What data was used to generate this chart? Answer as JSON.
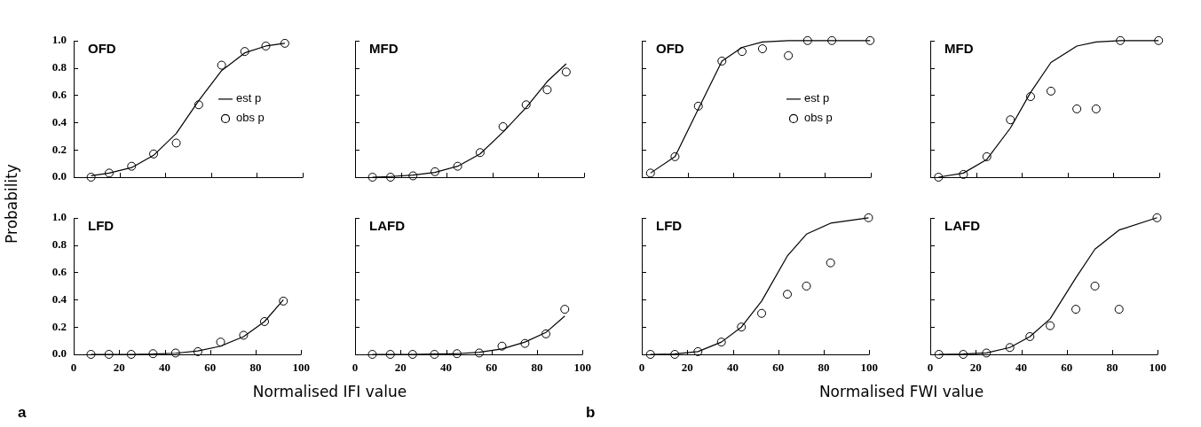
{
  "chart_data": [
    {
      "type": "scatter",
      "title": "OFD",
      "ylabel": "Probability",
      "x": [
        7.6,
        15.5,
        25.3,
        34.9,
        44.8,
        54.6,
        64.6,
        74.7,
        83.9,
        92.2
      ],
      "xlim": [
        0,
        100
      ],
      "xticks": [
        0,
        20,
        40,
        60,
        80,
        100
      ],
      "ylim": [
        0,
        1
      ],
      "yticks": [
        {
          "value": 0,
          "label": "0.0"
        },
        {
          "value": 0.2,
          "label": "0.2"
        },
        {
          "value": 0.4,
          "label": "0.4"
        },
        {
          "value": 0.6,
          "label": "0.6"
        },
        {
          "value": 0.8,
          "label": "0.8"
        },
        {
          "value": 1,
          "label": "1.0"
        }
      ],
      "tick_labels": "y",
      "legend": "right",
      "series": [
        {
          "name": "est p",
          "type": "line",
          "marker": "none",
          "color": "#000000",
          "values": [
            0.01,
            0.03,
            0.07,
            0.16,
            0.32,
            0.56,
            0.78,
            0.91,
            0.96,
            0.98
          ]
        },
        {
          "name": "obs p",
          "type": "scatter",
          "marker": "circle",
          "color": "#000000",
          "values": [
            0.0,
            0.03,
            0.08,
            0.17,
            0.25,
            0.53,
            0.82,
            0.92,
            0.96,
            0.98
          ]
        }
      ]
    },
    {
      "type": "scatter",
      "title": "MFD",
      "x": [
        7.6,
        15.5,
        25.3,
        34.9,
        44.8,
        54.6,
        64.6,
        74.7,
        83.9,
        92.2
      ],
      "xlim": [
        0,
        100
      ],
      "xticks": [
        0,
        20,
        40,
        60,
        80,
        100
      ],
      "ylim": [
        0,
        1
      ],
      "yticks": [
        0,
        0.2,
        0.4,
        0.6,
        0.8,
        1
      ],
      "tick_labels": false,
      "series": [
        {
          "type": "line",
          "marker": "none",
          "color": "#000000",
          "values": [
            0.0,
            0.005,
            0.015,
            0.035,
            0.08,
            0.17,
            0.33,
            0.51,
            0.7,
            0.83
          ]
        },
        {
          "type": "scatter",
          "marker": "circle",
          "color": "#000000",
          "values": [
            0.0,
            0.0,
            0.01,
            0.04,
            0.08,
            0.18,
            0.37,
            0.53,
            0.64,
            0.77
          ]
        }
      ]
    },
    {
      "type": "scatter",
      "title": "LFD",
      "xlabel": "Normalised IFI value",
      "annotations": [
        "a"
      ],
      "x": [
        7.6,
        15.5,
        25.3,
        34.9,
        44.8,
        54.6,
        64.6,
        74.7,
        83.9,
        92.2
      ],
      "xlim": [
        0,
        100
      ],
      "xticks": [
        0,
        20,
        40,
        60,
        80,
        100
      ],
      "ylim": [
        0,
        1
      ],
      "yticks": [
        {
          "value": 0,
          "label": "0.0"
        },
        {
          "value": 0.2,
          "label": "0.2"
        },
        {
          "value": 0.4,
          "label": "0.4"
        },
        {
          "value": 0.6,
          "label": "0.6"
        },
        {
          "value": 0.8,
          "label": "0.8"
        },
        {
          "value": 1,
          "label": "1.0"
        }
      ],
      "series": [
        {
          "type": "line",
          "marker": "none",
          "color": "#000000",
          "values": [
            0.0,
            0.0,
            0.0,
            0.002,
            0.008,
            0.025,
            0.06,
            0.13,
            0.24,
            0.4
          ]
        },
        {
          "type": "scatter",
          "marker": "circle",
          "color": "#000000",
          "values": [
            0.0,
            0.0,
            0.0,
            0.005,
            0.01,
            0.02,
            0.09,
            0.14,
            0.24,
            0.39
          ]
        }
      ]
    },
    {
      "type": "scatter",
      "title": "LAFD",
      "x": [
        7.6,
        15.5,
        25.3,
        34.9,
        44.8,
        54.6,
        64.6,
        74.7,
        83.9,
        92.2
      ],
      "xlim": [
        0,
        100
      ],
      "xticks": [
        0,
        20,
        40,
        60,
        80,
        100
      ],
      "ylim": [
        0,
        1
      ],
      "yticks": [
        0,
        0.2,
        0.4,
        0.6,
        0.8,
        1
      ],
      "tick_labels": "x",
      "series": [
        {
          "type": "line",
          "marker": "none",
          "color": "#000000",
          "values": [
            0.0,
            0.0,
            0.0,
            0.002,
            0.005,
            0.015,
            0.04,
            0.09,
            0.16,
            0.28
          ]
        },
        {
          "type": "scatter",
          "marker": "circle",
          "color": "#000000",
          "values": [
            0.0,
            0.0,
            0.0,
            0.0,
            0.005,
            0.01,
            0.06,
            0.08,
            0.15,
            0.33
          ]
        }
      ]
    },
    {
      "type": "scatter",
      "title": "OFD",
      "x": [
        3.8,
        14.5,
        24.7,
        35,
        43.8,
        52.7,
        64,
        72.4,
        83,
        99.7
      ],
      "xlim": [
        0,
        100
      ],
      "xticks": [
        0,
        20,
        40,
        60,
        80,
        100
      ],
      "ylim": [
        0,
        1
      ],
      "yticks": [
        0,
        0.2,
        0.4,
        0.6,
        0.8,
        1
      ],
      "tick_labels": false,
      "legend": "right",
      "series": [
        {
          "name": "est p",
          "type": "line",
          "marker": "none",
          "color": "#000000",
          "values": [
            0.03,
            0.15,
            0.5,
            0.85,
            0.95,
            0.99,
            1.0,
            1.0,
            1.0,
            1.0
          ]
        },
        {
          "name": "obs p",
          "type": "scatter",
          "marker": "circle",
          "color": "#000000",
          "values": [
            0.03,
            0.15,
            0.52,
            0.85,
            0.92,
            0.94,
            0.89,
            1.0,
            1.0,
            1.0
          ]
        }
      ]
    },
    {
      "type": "scatter",
      "title": "MFD",
      "x": [
        3.6,
        14.5,
        24.7,
        35,
        43.8,
        52.7,
        64,
        72.4,
        83,
        99.7
      ],
      "xlim": [
        0,
        100
      ],
      "xticks": [
        0,
        20,
        40,
        60,
        80,
        100
      ],
      "ylim": [
        0,
        1
      ],
      "yticks": [
        0,
        0.2,
        0.4,
        0.6,
        0.8,
        1
      ],
      "tick_labels": false,
      "series": [
        {
          "type": "line",
          "marker": "none",
          "color": "#000000",
          "values": [
            0.0,
            0.03,
            0.13,
            0.36,
            0.62,
            0.84,
            0.96,
            0.99,
            1.0,
            1.0
          ]
        },
        {
          "type": "scatter",
          "marker": "circle",
          "color": "#000000",
          "values": [
            0.0,
            0.02,
            0.15,
            0.42,
            0.59,
            0.63,
            0.5,
            0.5,
            1.0,
            1.0
          ]
        }
      ]
    },
    {
      "type": "scatter",
      "title": "LFD",
      "xlabel": "Normalised FWI value",
      "annotations": [
        "b"
      ],
      "x": [
        3.8,
        14.5,
        24.7,
        35,
        43.8,
        52.7,
        64,
        72.4,
        83,
        99.7
      ],
      "xlim": [
        0,
        100
      ],
      "xticks": [
        0,
        20,
        40,
        60,
        80,
        100
      ],
      "ylim": [
        0,
        1
      ],
      "yticks": [
        0,
        0.2,
        0.4,
        0.6,
        0.8,
        1
      ],
      "tick_labels": "x",
      "series": [
        {
          "type": "line",
          "marker": "none",
          "color": "#000000",
          "values": [
            0.0,
            0.003,
            0.02,
            0.09,
            0.2,
            0.39,
            0.72,
            0.88,
            0.96,
            1.0
          ]
        },
        {
          "type": "scatter",
          "marker": "circle",
          "color": "#000000",
          "values": [
            0.0,
            0.0,
            0.02,
            0.09,
            0.2,
            0.3,
            0.44,
            0.5,
            0.67,
            1.0
          ]
        }
      ]
    },
    {
      "type": "scatter",
      "title": "LAFD",
      "x": [
        3.8,
        14.5,
        24.7,
        35,
        43.8,
        52.7,
        64,
        72.4,
        83,
        99.7
      ],
      "xlim": [
        0,
        100
      ],
      "xticks": [
        0,
        20,
        40,
        60,
        80,
        100
      ],
      "ylim": [
        0,
        1
      ],
      "yticks": [
        0,
        0.2,
        0.4,
        0.6,
        0.8,
        1
      ],
      "tick_labels": "x",
      "series": [
        {
          "type": "line",
          "marker": "none",
          "color": "#000000",
          "values": [
            0.0,
            0.003,
            0.01,
            0.05,
            0.13,
            0.26,
            0.56,
            0.77,
            0.91,
            1.0
          ]
        },
        {
          "type": "scatter",
          "marker": "circle",
          "color": "#000000",
          "values": [
            0.0,
            0.0,
            0.01,
            0.05,
            0.13,
            0.21,
            0.33,
            0.5,
            0.33,
            1.0
          ]
        }
      ]
    }
  ]
}
